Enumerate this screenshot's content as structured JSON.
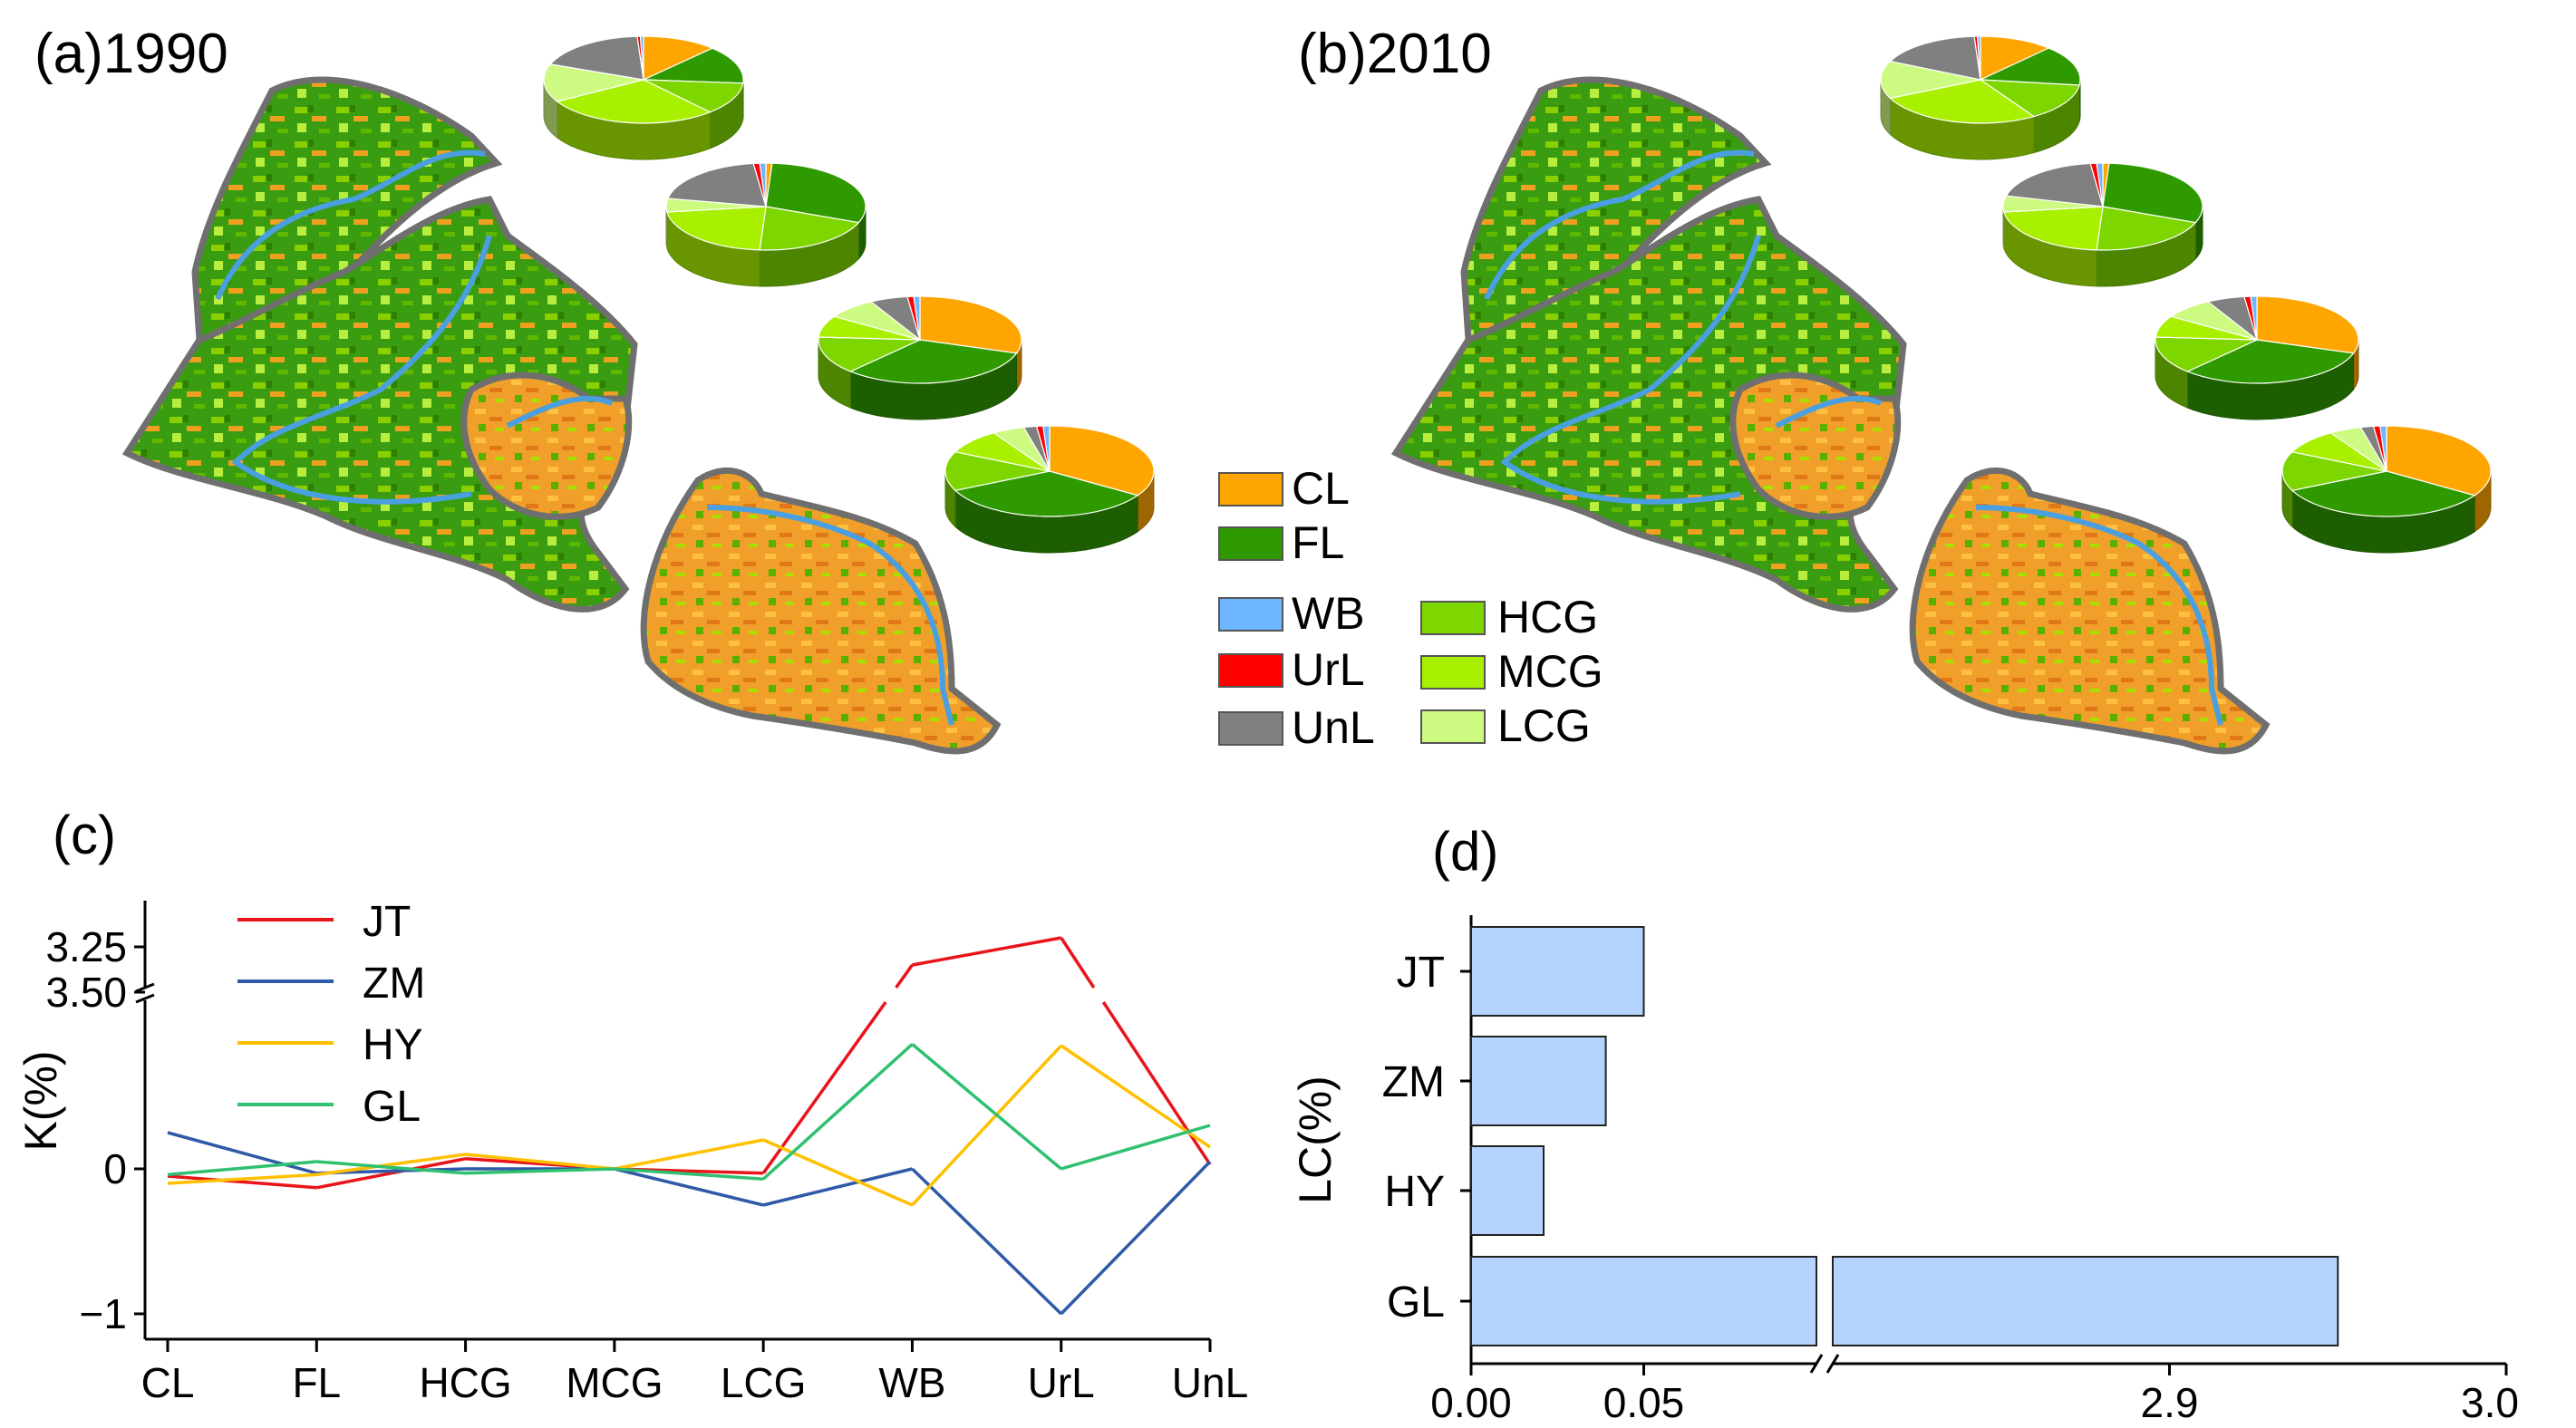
{
  "panels": {
    "a": {
      "label": "(a)1990"
    },
    "b": {
      "label": "(b)2010"
    },
    "c": {
      "label": "(c)"
    },
    "d": {
      "label": "(d)"
    }
  },
  "colors": {
    "CL": "#ffa500",
    "FL": "#2f9a00",
    "WB": "#6eb6ff",
    "UrL": "#ff0000",
    "UnL": "#808080",
    "HCG": "#7ed600",
    "MCG": "#a8f000",
    "LCG": "#cdfa80",
    "JT": "#e8141a",
    "ZM": "#2f5aa8",
    "HY": "#ffc000",
    "GL": "#2fc070",
    "bar_fill": "#b4d4ff"
  },
  "legend": {
    "items": [
      {
        "code": "CL",
        "label": "CL"
      },
      {
        "code": "FL",
        "label": "FL"
      },
      {
        "code": "WB",
        "label": "WB"
      },
      {
        "code": "UrL",
        "label": "UrL"
      },
      {
        "code": "UnL",
        "label": "UnL"
      },
      {
        "code": "HCG",
        "label": "HCG"
      },
      {
        "code": "MCG",
        "label": "MCG"
      },
      {
        "code": "LCG",
        "label": "LCG"
      }
    ]
  },
  "pies": {
    "order": [
      "CL",
      "FL",
      "HCG",
      "MCG",
      "LCG",
      "UnL",
      "UrL",
      "WB"
    ],
    "y1990": [
      {
        "CL": 12,
        "FL": 14,
        "HCG": 12,
        "MCG": 28,
        "LCG": 14,
        "UnL": 18,
        "UrL": 0.5,
        "WB": 0.5
      },
      {
        "CL": 1,
        "FL": 30,
        "HCG": 20,
        "MCG": 22,
        "LCG": 5,
        "UnL": 20,
        "UrL": 1,
        "WB": 1
      },
      {
        "CL": 30,
        "FL": 32,
        "HCG": 14,
        "MCG": 8,
        "LCG": 8,
        "UnL": 6,
        "UrL": 1,
        "WB": 1
      },
      {
        "CL": 34,
        "FL": 34,
        "HCG": 14,
        "MCG": 9,
        "LCG": 5,
        "UnL": 2,
        "UrL": 1,
        "WB": 1
      }
    ],
    "y2010": [
      {
        "CL": 12,
        "FL": 15,
        "HCG": 14,
        "MCG": 27,
        "LCG": 14,
        "UnL": 17,
        "UrL": 0.5,
        "WB": 0.5
      },
      {
        "CL": 1,
        "FL": 30,
        "HCG": 20,
        "MCG": 22,
        "LCG": 6,
        "UnL": 19,
        "UrL": 1,
        "WB": 1
      },
      {
        "CL": 30,
        "FL": 32,
        "HCG": 14,
        "MCG": 8,
        "LCG": 8,
        "UnL": 6,
        "UrL": 1,
        "WB": 1
      },
      {
        "CL": 34,
        "FL": 34,
        "HCG": 14,
        "MCG": 9,
        "LCG": 5,
        "UnL": 2,
        "UrL": 1,
        "WB": 1
      }
    ]
  },
  "chart_data": [
    {
      "type": "line",
      "title": "(c)",
      "xlabel": "",
      "ylabel": "K(%)",
      "categories": [
        "CL",
        "FL",
        "HCG",
        "MCG",
        "LCG",
        "WB",
        "UrL",
        "UnL"
      ],
      "yticks": [
        "3.50",
        "3.25",
        "0",
        "−1"
      ],
      "ylim_lower": [
        -1.2,
        1.2
      ],
      "ylim_upper": [
        3.1,
        3.6
      ],
      "axis_break": true,
      "series": [
        {
          "name": "JT",
          "values": [
            -0.05,
            -0.13,
            0.07,
            0.0,
            -0.03,
            3.35,
            3.2,
            0.03
          ]
        },
        {
          "name": "ZM",
          "values": [
            0.25,
            -0.03,
            0.0,
            0.0,
            -0.25,
            0.0,
            -1.0,
            0.05
          ]
        },
        {
          "name": "HY",
          "values": [
            -0.1,
            -0.04,
            0.1,
            0.0,
            0.2,
            -0.25,
            0.85,
            0.15
          ]
        },
        {
          "name": "GL",
          "values": [
            -0.04,
            0.05,
            -0.03,
            0.0,
            -0.07,
            0.86,
            0.0,
            0.3
          ]
        }
      ]
    },
    {
      "type": "bar",
      "orientation": "horizontal",
      "title": "(d)",
      "xlabel": "",
      "ylabel": "LC(%)",
      "categories": [
        "JT",
        "ZM",
        "HY",
        "GL"
      ],
      "values": [
        0.05,
        0.039,
        0.021,
        2.95
      ],
      "xticks": [
        "0.00",
        "0.05",
        "2.9",
        "3.0"
      ],
      "xlim_left": [
        0,
        0.1
      ],
      "xlim_right": [
        2.8,
        3.0
      ],
      "axis_break": true
    }
  ]
}
